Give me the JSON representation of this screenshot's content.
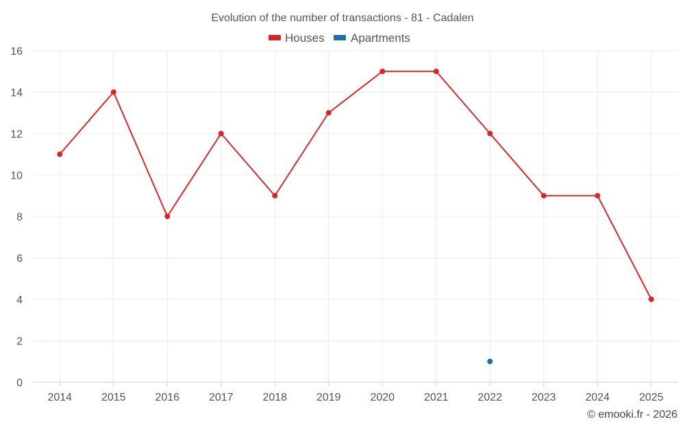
{
  "chart_data": {
    "type": "line",
    "title": "Evolution of the number of transactions - 81 - Cadalen",
    "xlabel": "",
    "ylabel": "",
    "categories": [
      "2014",
      "2015",
      "2016",
      "2017",
      "2018",
      "2019",
      "2020",
      "2021",
      "2022",
      "2023",
      "2024",
      "2025"
    ],
    "ylim": [
      0,
      16
    ],
    "yticks": [
      0,
      2,
      4,
      6,
      8,
      10,
      12,
      14,
      16
    ],
    "grid": true,
    "legend_position": "top-center",
    "series": [
      {
        "name": "Houses",
        "color": "#d62728",
        "values": [
          11,
          14,
          8,
          12,
          9,
          13,
          15,
          15,
          12,
          9,
          9,
          4
        ]
      },
      {
        "name": "Apartments",
        "color": "#1f6fa8",
        "values": [
          null,
          null,
          null,
          null,
          null,
          null,
          null,
          null,
          1,
          null,
          null,
          null
        ]
      }
    ],
    "credit": "© emooki.fr - 2026"
  }
}
